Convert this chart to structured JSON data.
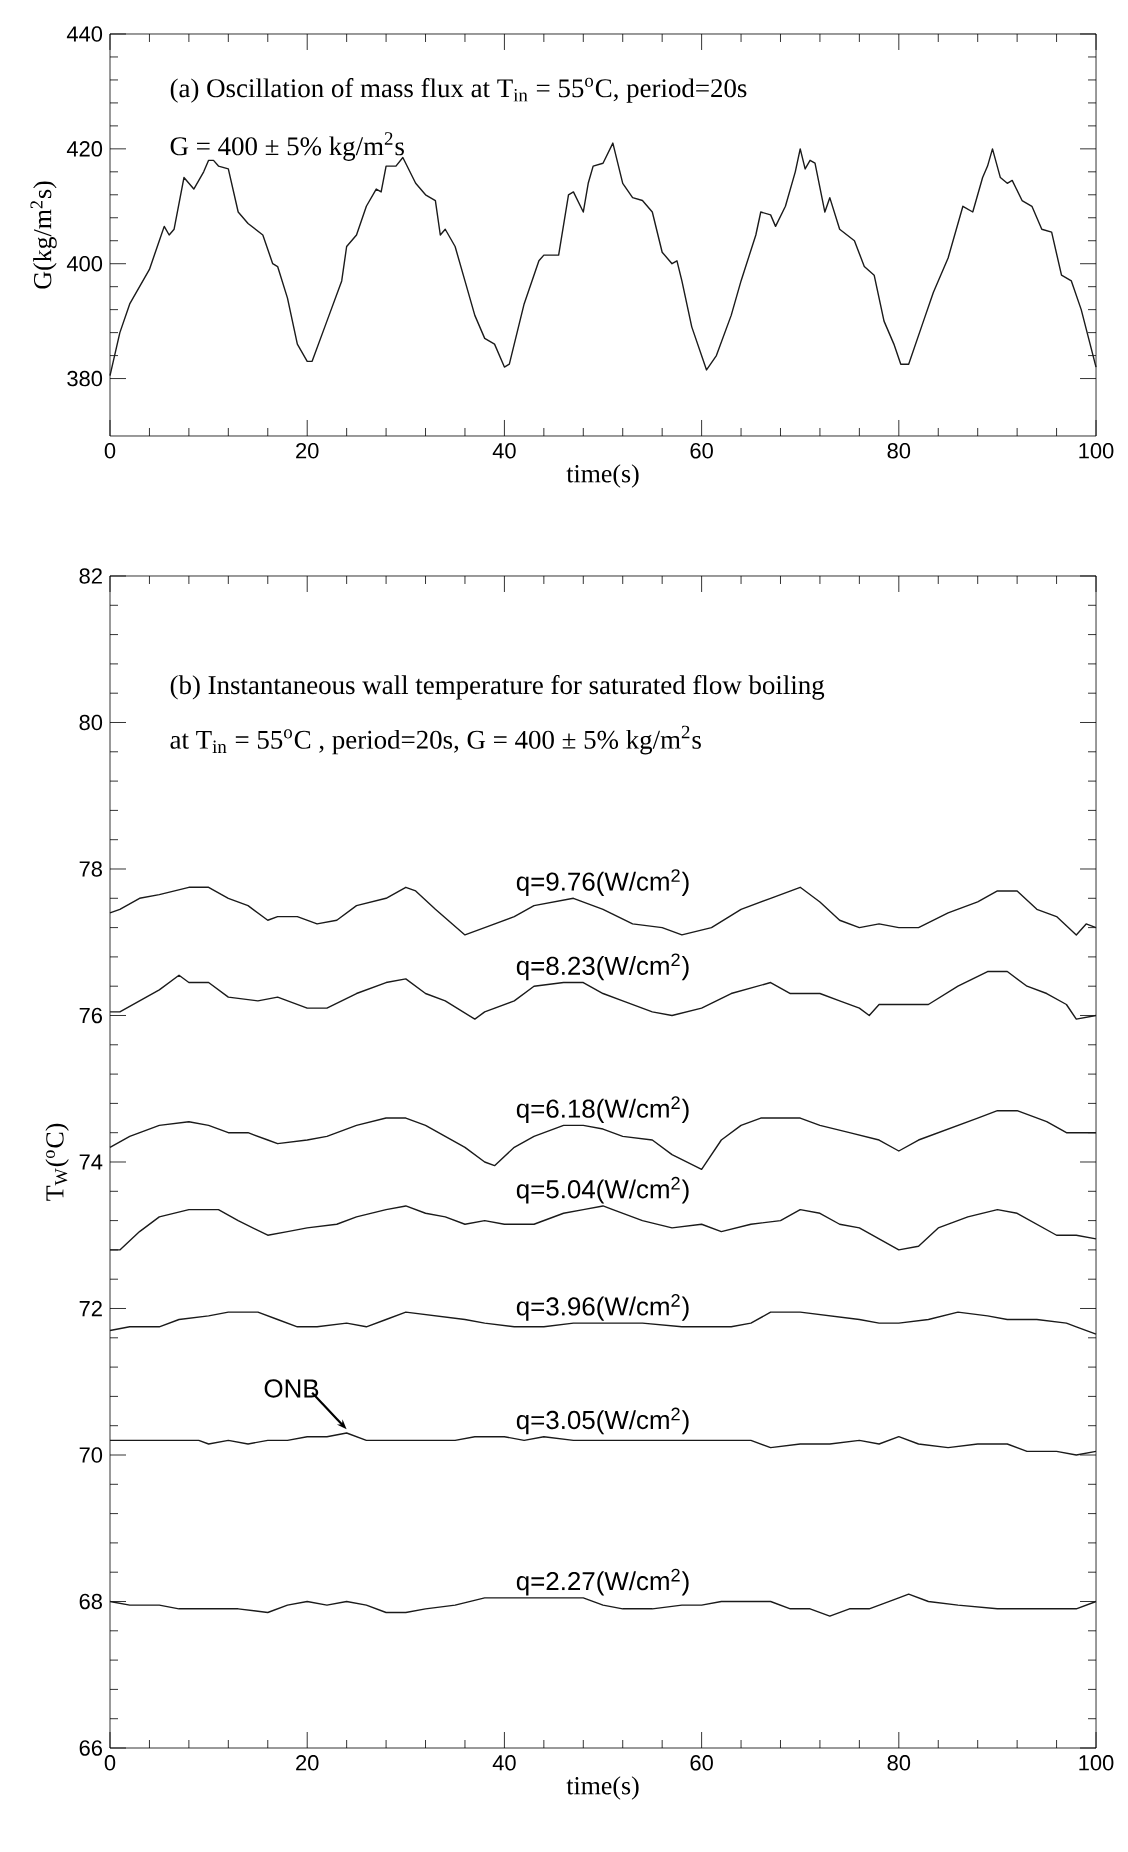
{
  "chart_data": [
    {
      "type": "line",
      "title": "(a) Oscillation of mass flux at T$_{in}$ = 55$^{o}$C, period=20s",
      "subtitle": "G = 400 ± 5% kg/m$^{2}$s",
      "xlabel": "time(s)",
      "ylabel": "G(kg/m$^{2}$s)",
      "xlim": [
        0,
        100
      ],
      "ylim": [
        370,
        440
      ],
      "xticks": [
        0,
        20,
        40,
        60,
        80,
        100
      ],
      "yticks": [
        380,
        400,
        420,
        440
      ],
      "series": [
        {
          "color": "#1a1a1a",
          "x": [
            0,
            1,
            2,
            4,
            5,
            5.5,
            6,
            6.5,
            7.5,
            8.5,
            9.5,
            10,
            10.5,
            11,
            12,
            13,
            14,
            15.5,
            16.5,
            17,
            18,
            19,
            20,
            20.5,
            22,
            23.5,
            24,
            25,
            26,
            27,
            27.5,
            28,
            29,
            29.7,
            31,
            32,
            33,
            33.5,
            34,
            35,
            36,
            37,
            38,
            39,
            40,
            40.5,
            42,
            43.5,
            44,
            45.5,
            46.5,
            47,
            48,
            48.5,
            49,
            50,
            51,
            52,
            53,
            54,
            55,
            56,
            57,
            57.5,
            58,
            59,
            60.5,
            61.5,
            63,
            64,
            65.5,
            66,
            67,
            67.5,
            68.5,
            69,
            69.5,
            70,
            70.5,
            71,
            71.5,
            72.5,
            73,
            74,
            75.5,
            76.5,
            77.5,
            78.5,
            79.5,
            80.2,
            81,
            82.5,
            83.5,
            85,
            86.5,
            87.5,
            88.5,
            89,
            89.5,
            90.3,
            91,
            91.5,
            92.5,
            93.5,
            94.5,
            95.5,
            96.5,
            97.5,
            98.5,
            100
          ],
          "values": [
            380.5,
            388,
            393,
            399,
            404,
            406.5,
            405,
            406,
            415,
            413,
            416,
            418,
            418,
            417,
            416.5,
            409,
            407,
            405,
            400,
            399.5,
            394,
            386,
            383,
            383,
            390,
            397,
            403,
            405,
            410,
            413,
            412.5,
            417,
            417,
            418.5,
            414,
            412,
            411,
            405,
            406,
            403,
            397,
            391,
            387,
            386,
            382,
            382.5,
            393,
            400.5,
            401.5,
            401.5,
            412,
            412.5,
            409,
            414,
            417,
            417.5,
            421,
            414,
            411.5,
            411,
            409,
            402,
            400,
            400.5,
            397,
            389,
            381.5,
            384,
            391,
            397,
            405,
            409,
            408.5,
            406.5,
            410,
            413,
            416,
            420,
            416.5,
            418,
            417.5,
            409,
            411.5,
            406,
            404,
            399.5,
            398,
            390,
            386,
            382.5,
            382.5,
            390,
            395,
            401,
            410,
            409,
            415,
            417,
            420,
            415,
            414,
            414.5,
            411,
            410,
            406,
            405.5,
            398,
            397,
            392,
            382
          ]
        }
      ]
    },
    {
      "type": "line",
      "title": "(b) Instantaneous wall temperature for saturated flow boiling",
      "subtitle": "at T$_{in}$ = 55$^{o}$C , period=20s, G = 400 ± 5% kg/m$^{2}$s",
      "xlabel": "time(s)",
      "ylabel": "T$_{W}$($^{o}$C)",
      "xlim": [
        0,
        100
      ],
      "ylim": [
        66,
        82
      ],
      "xticks": [
        0,
        20,
        40,
        60,
        80,
        100
      ],
      "yticks": [
        66,
        68,
        70,
        72,
        74,
        76,
        78,
        80,
        82
      ],
      "annotations": [
        {
          "text": "ONB",
          "x": 24,
          "y": 70.3
        }
      ],
      "series": [
        {
          "name": "q=9.76(W/cm$^{2}$)",
          "color": "#1a1a1a",
          "x": [
            0,
            1,
            3,
            5,
            8,
            10,
            12,
            14,
            16,
            17,
            19,
            21,
            23,
            25,
            28,
            30,
            31,
            33,
            36,
            38,
            41,
            43,
            47,
            50,
            53,
            56,
            58,
            61,
            64,
            67,
            70,
            72,
            74,
            76,
            78,
            80,
            82,
            85,
            88,
            90,
            92,
            94,
            96,
            98,
            99,
            100
          ],
          "values": [
            77.4,
            77.45,
            77.6,
            77.65,
            77.75,
            77.75,
            77.6,
            77.5,
            77.3,
            77.35,
            77.35,
            77.25,
            77.3,
            77.5,
            77.6,
            77.75,
            77.7,
            77.45,
            77.1,
            77.2,
            77.35,
            77.5,
            77.6,
            77.45,
            77.25,
            77.2,
            77.1,
            77.2,
            77.45,
            77.6,
            77.75,
            77.55,
            77.3,
            77.2,
            77.25,
            77.2,
            77.2,
            77.4,
            77.55,
            77.7,
            77.7,
            77.45,
            77.35,
            77.1,
            77.25,
            77.2
          ]
        },
        {
          "name": "q=8.23(W/cm$^{2}$)",
          "color": "#1a1a1a",
          "x": [
            0,
            1,
            3,
            5,
            7,
            8,
            10,
            12,
            15,
            17,
            20,
            22,
            25,
            28,
            30,
            32,
            34,
            37,
            38,
            41,
            43,
            46,
            48,
            50,
            52,
            55,
            57,
            60,
            63,
            67,
            69,
            72,
            74,
            76,
            77,
            78,
            80,
            83,
            86,
            89,
            91,
            93,
            95,
            97,
            98,
            100
          ],
          "values": [
            76.05,
            76.05,
            76.2,
            76.35,
            76.55,
            76.45,
            76.45,
            76.25,
            76.2,
            76.25,
            76.1,
            76.1,
            76.3,
            76.45,
            76.5,
            76.3,
            76.2,
            75.95,
            76.05,
            76.2,
            76.4,
            76.45,
            76.45,
            76.3,
            76.2,
            76.05,
            76.0,
            76.1,
            76.3,
            76.45,
            76.3,
            76.3,
            76.2,
            76.1,
            76.0,
            76.15,
            76.15,
            76.15,
            76.4,
            76.6,
            76.6,
            76.4,
            76.3,
            76.15,
            75.95,
            76.0
          ]
        },
        {
          "name": "q=6.18(W/cm$^{2}$)",
          "color": "#1a1a1a",
          "x": [
            0,
            2,
            5,
            8,
            10,
            12,
            14,
            16,
            17,
            20,
            22,
            25,
            28,
            30,
            32,
            34,
            36,
            38,
            39,
            41,
            43,
            46,
            48,
            50,
            52,
            55,
            57,
            60,
            62,
            64,
            66,
            70,
            72,
            75,
            78,
            80,
            82,
            85,
            88,
            90,
            92,
            95,
            97,
            100
          ],
          "values": [
            74.2,
            74.35,
            74.5,
            74.55,
            74.5,
            74.4,
            74.4,
            74.3,
            74.25,
            74.3,
            74.35,
            74.5,
            74.6,
            74.6,
            74.5,
            74.35,
            74.2,
            74.0,
            73.95,
            74.2,
            74.35,
            74.5,
            74.5,
            74.45,
            74.35,
            74.3,
            74.1,
            73.9,
            74.3,
            74.5,
            74.6,
            74.6,
            74.5,
            74.4,
            74.3,
            74.15,
            74.3,
            74.45,
            74.6,
            74.7,
            74.7,
            74.55,
            74.4,
            74.4
          ]
        },
        {
          "name": "q=5.04(W/cm$^{2}$)",
          "color": "#1a1a1a",
          "x": [
            0,
            1,
            3,
            5,
            8,
            11,
            13,
            16,
            18,
            20,
            23,
            25,
            28,
            30,
            32,
            34,
            36,
            38,
            40,
            43,
            46,
            48,
            50,
            51,
            54,
            57,
            60,
            62,
            65,
            68,
            70,
            72,
            74,
            76,
            78,
            80,
            82,
            84,
            87,
            90,
            92,
            94,
            96,
            98,
            100
          ],
          "values": [
            72.8,
            72.8,
            73.05,
            73.25,
            73.35,
            73.35,
            73.2,
            73.0,
            73.05,
            73.1,
            73.15,
            73.25,
            73.35,
            73.4,
            73.3,
            73.25,
            73.15,
            73.2,
            73.15,
            73.15,
            73.3,
            73.35,
            73.4,
            73.35,
            73.2,
            73.1,
            73.15,
            73.05,
            73.15,
            73.2,
            73.35,
            73.3,
            73.15,
            73.1,
            72.95,
            72.8,
            72.85,
            73.1,
            73.25,
            73.35,
            73.3,
            73.15,
            73.0,
            73.0,
            72.95
          ]
        },
        {
          "name": "q=3.96(W/cm$^{2}$)",
          "color": "#1a1a1a",
          "x": [
            0,
            2,
            5,
            7,
            10,
            12,
            15,
            17,
            19,
            21,
            24,
            26,
            28,
            30,
            33,
            36,
            38,
            41,
            44,
            47,
            50,
            54,
            58,
            60,
            63,
            65,
            67,
            70,
            73,
            76,
            78,
            80,
            83,
            86,
            89,
            91,
            94,
            97,
            98,
            100
          ],
          "values": [
            71.7,
            71.75,
            71.75,
            71.85,
            71.9,
            71.95,
            71.95,
            71.85,
            71.75,
            71.75,
            71.8,
            71.75,
            71.85,
            71.95,
            71.9,
            71.85,
            71.8,
            71.75,
            71.75,
            71.8,
            71.8,
            71.8,
            71.75,
            71.75,
            71.75,
            71.8,
            71.95,
            71.95,
            71.9,
            71.85,
            71.8,
            71.8,
            71.85,
            71.95,
            71.9,
            71.85,
            71.85,
            71.8,
            71.75,
            71.65
          ]
        },
        {
          "name": "q=3.05(W/cm$^{2}$)",
          "color": "#1a1a1a",
          "x": [
            0,
            9,
            10,
            12,
            14,
            16,
            18,
            20,
            22,
            24,
            26,
            35,
            37,
            40,
            42,
            44,
            47,
            50,
            53,
            57,
            65,
            67,
            70,
            73,
            76,
            78,
            80,
            82,
            85,
            88,
            91,
            93,
            96,
            98,
            100
          ],
          "values": [
            70.2,
            70.2,
            70.15,
            70.2,
            70.15,
            70.2,
            70.2,
            70.25,
            70.25,
            70.3,
            70.2,
            70.2,
            70.25,
            70.25,
            70.2,
            70.25,
            70.2,
            70.2,
            70.2,
            70.2,
            70.2,
            70.1,
            70.15,
            70.15,
            70.2,
            70.15,
            70.25,
            70.15,
            70.1,
            70.15,
            70.15,
            70.05,
            70.05,
            70.0,
            70.05
          ]
        },
        {
          "name": "q=2.27(W/cm$^{2}$)",
          "color": "#1a1a1a",
          "x": [
            0,
            2,
            5,
            7,
            10,
            13,
            16,
            18,
            20,
            22,
            24,
            26,
            28,
            30,
            32,
            35,
            38,
            42,
            45,
            48,
            50,
            52,
            55,
            58,
            60,
            62,
            67,
            69,
            71,
            73,
            75,
            77,
            80,
            81,
            83,
            86,
            90,
            94,
            98,
            100
          ],
          "values": [
            68.0,
            67.95,
            67.95,
            67.9,
            67.9,
            67.9,
            67.85,
            67.95,
            68.0,
            67.95,
            68.0,
            67.95,
            67.85,
            67.85,
            67.9,
            67.95,
            68.05,
            68.05,
            68.05,
            68.05,
            67.95,
            67.9,
            67.9,
            67.95,
            67.95,
            68.0,
            68.0,
            67.9,
            67.9,
            67.8,
            67.9,
            67.9,
            68.05,
            68.1,
            68.0,
            67.95,
            67.9,
            67.9,
            67.9,
            68.0
          ]
        }
      ]
    }
  ]
}
